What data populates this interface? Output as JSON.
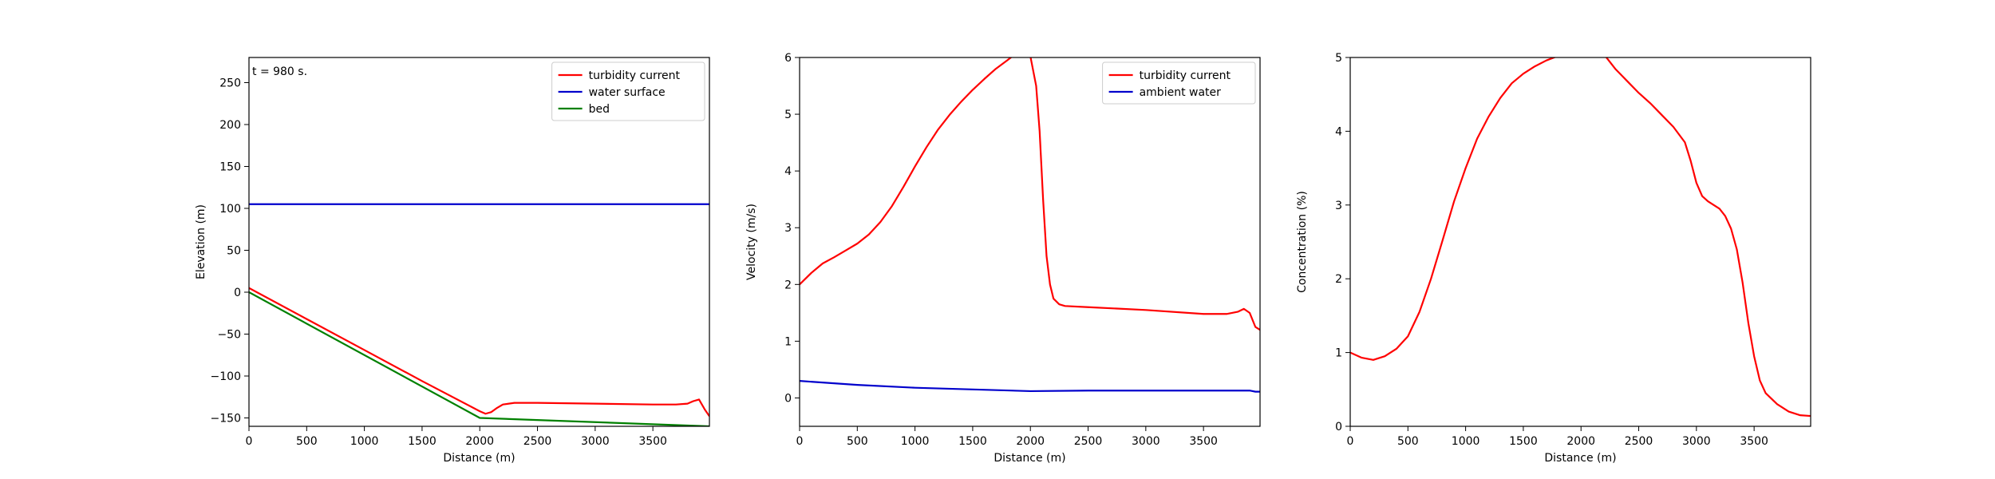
{
  "chart_data": [
    {
      "type": "line",
      "annotation": "t = 980 s.",
      "title": "",
      "xlabel": "Distance (m)",
      "ylabel": "Elevation (m)",
      "xlim": [
        0,
        3990
      ],
      "ylim": [
        -160,
        280
      ],
      "xticks": [
        0,
        500,
        1000,
        1500,
        2000,
        2500,
        3000,
        3500
      ],
      "yticks": [
        -150,
        -100,
        -50,
        0,
        50,
        100,
        150,
        200,
        250
      ],
      "xtick_labels": [
        "0",
        "500",
        "1000",
        "1500",
        "2000",
        "2500",
        "3000",
        "3500"
      ],
      "ytick_labels": [
        "−150",
        "−100",
        "−50",
        "0",
        "50",
        "100",
        "150",
        "200",
        "250"
      ],
      "grid": false,
      "legend_position": "top-right",
      "series": [
        {
          "name": "turbidity current",
          "color": "#ff0000",
          "x": [
            0,
            500,
            1000,
            1500,
            2000,
            2050,
            2100,
            2150,
            2200,
            2300,
            2500,
            3000,
            3500,
            3700,
            3800,
            3850,
            3900,
            3950,
            3990
          ],
          "y": [
            5,
            -32,
            -69,
            -106,
            -142,
            -145,
            -143,
            -138,
            -134,
            -132,
            -132,
            -133,
            -134,
            -134,
            -133,
            -130,
            -128,
            -140,
            -148
          ]
        },
        {
          "name": "water surface",
          "color": "#0000cc",
          "x": [
            0,
            3990
          ],
          "y": [
            105,
            105
          ]
        },
        {
          "name": "bed",
          "color": "#008000",
          "x": [
            0,
            2000,
            3990
          ],
          "y": [
            0,
            -150,
            -160
          ]
        }
      ]
    },
    {
      "type": "line",
      "title": "",
      "xlabel": "Distance (m)",
      "ylabel": "Velocity (m/s)",
      "xlim": [
        0,
        3990
      ],
      "ylim": [
        -0.5,
        6
      ],
      "xticks": [
        0,
        500,
        1000,
        1500,
        2000,
        2500,
        3000,
        3500
      ],
      "yticks": [
        0,
        1,
        2,
        3,
        4,
        5,
        6
      ],
      "xtick_labels": [
        "0",
        "500",
        "1000",
        "1500",
        "2000",
        "2500",
        "3000",
        "3500"
      ],
      "ytick_labels": [
        "0",
        "1",
        "2",
        "3",
        "4",
        "5",
        "6"
      ],
      "grid": false,
      "legend_position": "top-right",
      "series": [
        {
          "name": "turbidity current",
          "color": "#ff0000",
          "x": [
            0,
            100,
            200,
            300,
            400,
            500,
            600,
            700,
            800,
            900,
            1000,
            1100,
            1200,
            1300,
            1400,
            1500,
            1600,
            1700,
            1800,
            1850,
            1900,
            1950,
            2000,
            2050,
            2080,
            2110,
            2140,
            2170,
            2200,
            2250,
            2300,
            2500,
            3000,
            3500,
            3700,
            3800,
            3850,
            3900,
            3950,
            3990
          ],
          "y": [
            2.0,
            2.2,
            2.37,
            2.48,
            2.6,
            2.72,
            2.88,
            3.1,
            3.38,
            3.72,
            4.08,
            4.42,
            4.73,
            4.99,
            5.22,
            5.43,
            5.62,
            5.8,
            5.95,
            6.03,
            6.1,
            6.15,
            6.02,
            5.5,
            4.7,
            3.5,
            2.5,
            2.0,
            1.75,
            1.65,
            1.62,
            1.6,
            1.55,
            1.48,
            1.48,
            1.52,
            1.57,
            1.5,
            1.25,
            1.2
          ]
        },
        {
          "name": "ambient water",
          "color": "#0000cc",
          "x": [
            0,
            500,
            1000,
            1500,
            2000,
            2500,
            3000,
            3500,
            3900,
            3950,
            3990
          ],
          "y": [
            0.3,
            0.23,
            0.18,
            0.15,
            0.12,
            0.13,
            0.13,
            0.13,
            0.13,
            0.11,
            0.11
          ]
        }
      ]
    },
    {
      "type": "line",
      "title": "",
      "xlabel": "Distance (m)",
      "ylabel": "Concentration (%)",
      "xlim": [
        0,
        3990
      ],
      "ylim": [
        0,
        5
      ],
      "xticks": [
        0,
        500,
        1000,
        1500,
        2000,
        2500,
        3000,
        3500
      ],
      "yticks": [
        0,
        1,
        2,
        3,
        4,
        5
      ],
      "xtick_labels": [
        "0",
        "500",
        "1000",
        "1500",
        "2000",
        "2500",
        "3000",
        "3500"
      ],
      "ytick_labels": [
        "0",
        "1",
        "2",
        "3",
        "4",
        "5"
      ],
      "grid": false,
      "legend_position": "",
      "series": [
        {
          "name": "",
          "color": "#ff0000",
          "x": [
            0,
            100,
            200,
            300,
            400,
            500,
            600,
            700,
            800,
            900,
            1000,
            1100,
            1200,
            1300,
            1400,
            1500,
            1600,
            1700,
            1800,
            1900,
            2000,
            2100,
            2200,
            2300,
            2400,
            2500,
            2600,
            2700,
            2800,
            2900,
            2950,
            3000,
            3050,
            3100,
            3150,
            3200,
            3250,
            3300,
            3350,
            3400,
            3450,
            3500,
            3550,
            3600,
            3700,
            3800,
            3900,
            3990
          ],
          "y": [
            1.0,
            0.93,
            0.9,
            0.95,
            1.05,
            1.22,
            1.55,
            2.0,
            2.52,
            3.05,
            3.5,
            3.9,
            4.2,
            4.45,
            4.65,
            4.78,
            4.88,
            4.96,
            5.02,
            5.06,
            5.08,
            5.08,
            5.04,
            4.84,
            4.68,
            4.52,
            4.38,
            4.22,
            4.06,
            3.85,
            3.6,
            3.3,
            3.12,
            3.05,
            3.0,
            2.95,
            2.85,
            2.68,
            2.4,
            1.95,
            1.4,
            0.95,
            0.62,
            0.45,
            0.3,
            0.2,
            0.15,
            0.14
          ]
        }
      ]
    }
  ]
}
